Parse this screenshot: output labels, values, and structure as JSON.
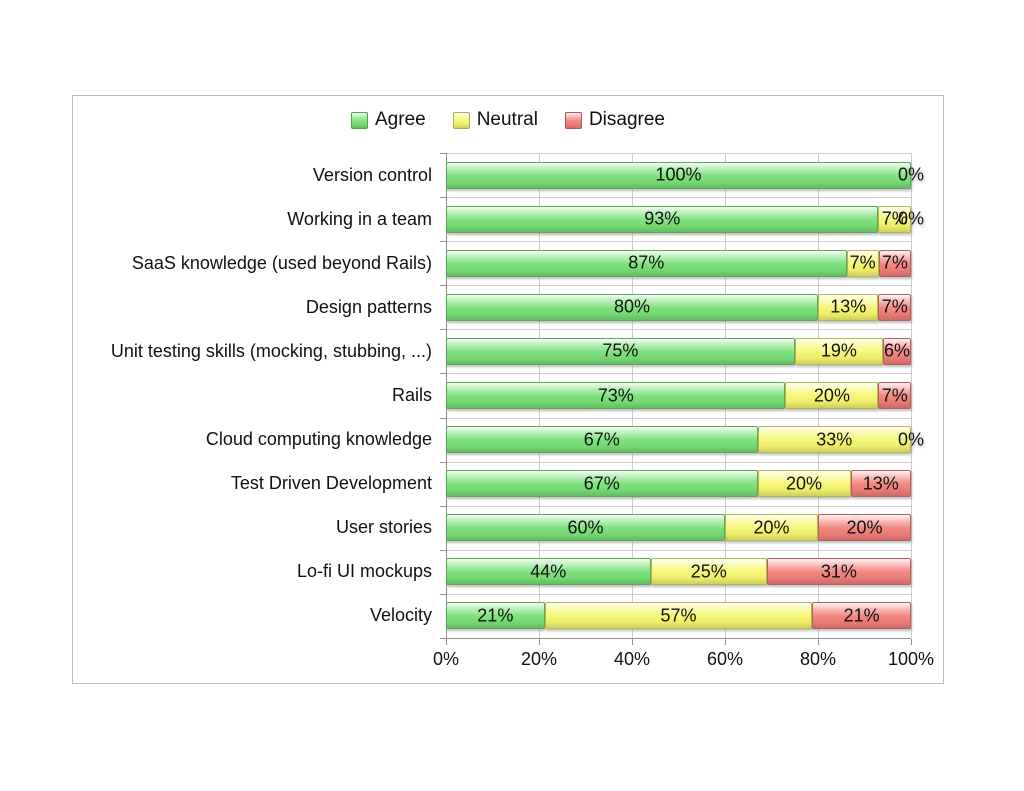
{
  "chart_data": {
    "type": "bar",
    "orientation": "horizontal",
    "stacked": true,
    "title": "",
    "unit": "%",
    "categories": [
      "Version control",
      "Working in a team",
      "SaaS knowledge (used beyond Rails)",
      "Design patterns",
      "Unit testing skills (mocking, stubbing, ...)",
      "Rails",
      "Cloud computing knowledge",
      "Test Driven Development",
      "User stories",
      "Lo-fi UI mockups",
      "Velocity"
    ],
    "series": [
      {
        "name": "Agree",
        "color": "#77e077",
        "values": [
          100,
          93,
          87,
          80,
          75,
          73,
          67,
          67,
          60,
          44,
          21
        ]
      },
      {
        "name": "Neutral",
        "color": "#f5f56e",
        "values": [
          0,
          7,
          7,
          13,
          19,
          20,
          33,
          20,
          20,
          25,
          57
        ]
      },
      {
        "name": "Disagree",
        "color": "#f28079",
        "values": [
          0,
          0,
          7,
          7,
          6,
          7,
          0,
          13,
          20,
          31,
          21
        ]
      }
    ],
    "data_labels": "value shown inside each segment with % suffix; 0% shown at bar end",
    "xlim": [
      0,
      100
    ],
    "x_ticks": [
      "0%",
      "20%",
      "40%",
      "60%",
      "80%",
      "100%"
    ],
    "grid": true,
    "legend_position": "top",
    "colors": {
      "gridline": "#cdcdcd",
      "axis": "#909090",
      "frame_border": "#bdbdbd",
      "text": "#111111"
    }
  }
}
